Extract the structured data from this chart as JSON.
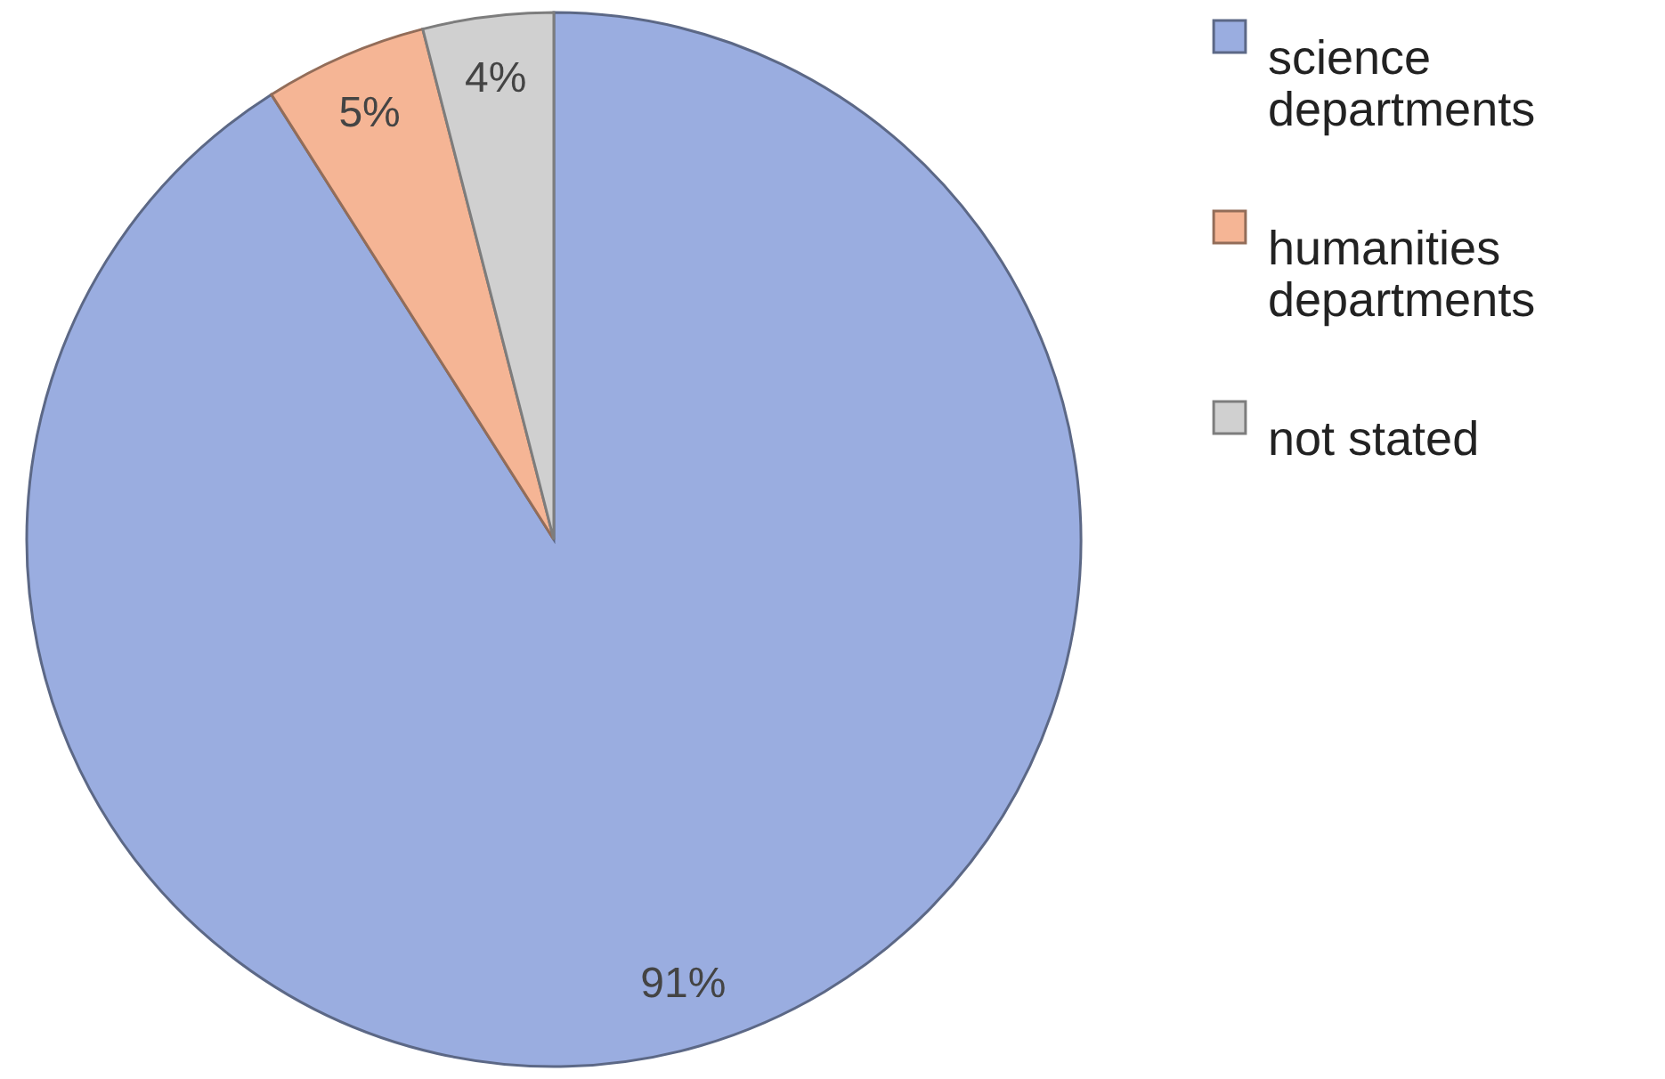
{
  "chart_data": {
    "type": "pie",
    "categories": [
      "science departments",
      "humanities departments",
      "not stated"
    ],
    "values": [
      91,
      5,
      4
    ],
    "colors": [
      "#9aade0",
      "#f5b595",
      "#d0d0d0"
    ],
    "value_labels": [
      "91%",
      "5%",
      "4%"
    ],
    "legend": "right"
  }
}
